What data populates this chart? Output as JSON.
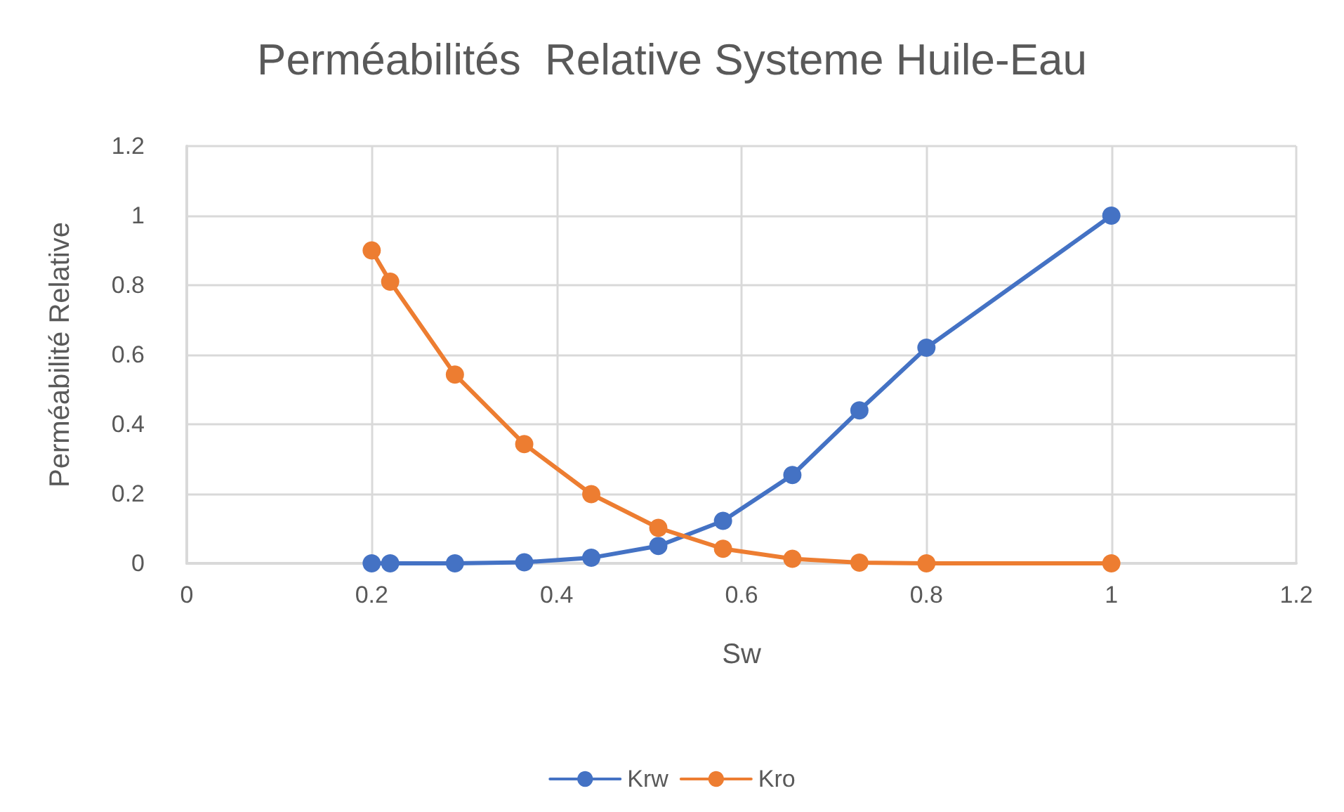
{
  "chart_data": {
    "type": "line",
    "title": "Perméabilités  Relative Systeme Huile-Eau",
    "xlabel": "Sw",
    "ylabel": "Perméabilité Relative",
    "x": [
      0.2,
      0.22,
      0.29,
      0.365,
      0.4375,
      0.51,
      0.58,
      0.655,
      0.7275,
      0.8,
      1.0
    ],
    "series": [
      {
        "name": "Krw",
        "color": "#4472c4",
        "values": [
          0,
          0,
          0,
          0.003,
          0.016,
          0.05,
          0.122,
          0.254,
          0.44,
          0.62,
          1.0
        ]
      },
      {
        "name": "Kro",
        "color": "#ed7d31",
        "values": [
          0.9,
          0.81,
          0.543,
          0.343,
          0.199,
          0.102,
          0.042,
          0.013,
          0.002,
          0,
          0
        ]
      }
    ],
    "xlim": [
      0,
      1.2
    ],
    "xticks": [
      0,
      0.2,
      0.4,
      0.6,
      0.8,
      1,
      1.2
    ],
    "ylim": [
      0,
      1.2
    ],
    "yticks": [
      0,
      0.2,
      0.4,
      0.6,
      0.8,
      1,
      1.2
    ],
    "grid": true,
    "legend": "bottom",
    "marker": "circle",
    "line_style": "solid"
  }
}
